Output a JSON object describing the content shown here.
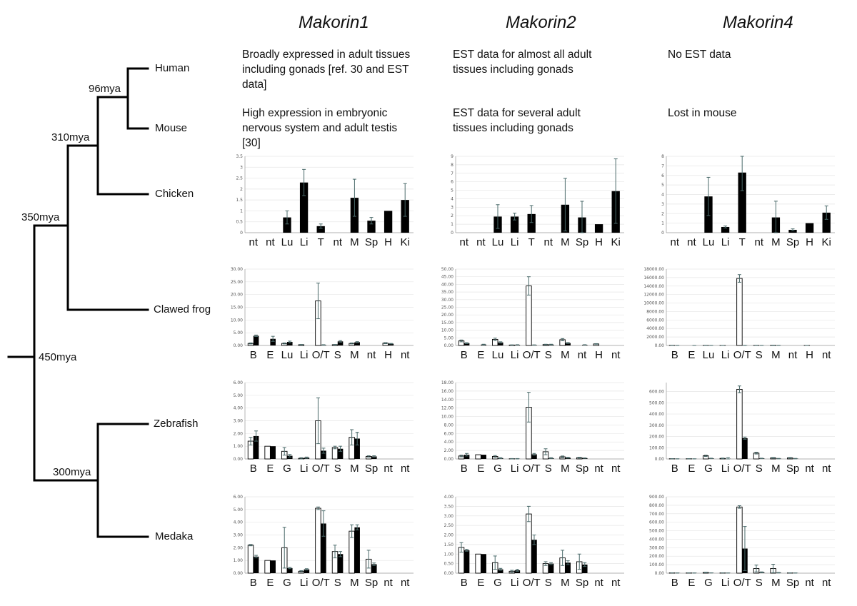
{
  "genes": [
    "Makorin1",
    "Makorin2",
    "Makorin4"
  ],
  "species": {
    "human": "Human",
    "mouse": "Mouse",
    "chicken": "Chicken",
    "frog": "Clawed frog",
    "zebrafish": "Zebrafish",
    "medaka": "Medaka"
  },
  "divergence_times": {
    "t96": "96mya",
    "t310": "310mya",
    "t350": "350mya",
    "t450": "450mya",
    "t300": "300mya"
  },
  "notes": {
    "human": [
      "Broadly expressed in adult tissues including gonads [ref. 30 and EST data]",
      "EST data for almost all adult tissues including gonads",
      "No EST data"
    ],
    "mouse": [
      "High expression in embryonic nervous system and adult testis [30]",
      "EST data for several adult tissues including gonads",
      "Lost in mouse"
    ]
  },
  "colors": {
    "bar_filled": "#000000",
    "bar_open": "#ffffff",
    "error_bar": "#4a6a6a",
    "axis": "#999999",
    "grid": "#e6e6e6"
  },
  "chart_data": [
    {
      "type": "bar",
      "gene": "Makorin1",
      "species": "Chicken",
      "categories": [
        "nt",
        "nt",
        "Lu",
        "Li",
        "T",
        "nt",
        "M",
        "Sp",
        "H",
        "Ki"
      ],
      "yticks": [
        "0",
        "0.5",
        "1",
        "1.5",
        "2",
        "2.5",
        "3",
        "3.5"
      ],
      "ylim": [
        0,
        3.5
      ],
      "series": [
        {
          "style": "filled",
          "values": [
            0,
            0,
            0.7,
            2.3,
            0.3,
            0,
            1.6,
            0.55,
            1.0,
            1.5
          ],
          "errors": [
            0,
            0,
            0.3,
            0.6,
            0.1,
            0,
            0.85,
            0.15,
            0,
            0.75
          ]
        }
      ]
    },
    {
      "type": "bar",
      "gene": "Makorin2",
      "species": "Chicken",
      "categories": [
        "nt",
        "nt",
        "Lu",
        "Li",
        "T",
        "nt",
        "M",
        "Sp",
        "H",
        "Ki"
      ],
      "yticks": [
        "0",
        "1",
        "2",
        "3",
        "4",
        "5",
        "6",
        "7",
        "8",
        "9"
      ],
      "ylim": [
        0,
        9
      ],
      "series": [
        {
          "style": "filled",
          "values": [
            0,
            0,
            1.9,
            1.9,
            2.2,
            0,
            3.3,
            1.8,
            1.0,
            4.9
          ],
          "errors": [
            0,
            0,
            1.4,
            0.4,
            1.0,
            0,
            3.1,
            1.9,
            0,
            3.8
          ]
        }
      ]
    },
    {
      "type": "bar",
      "gene": "Makorin4",
      "species": "Chicken",
      "categories": [
        "nt",
        "nt",
        "Lu",
        "Li",
        "T",
        "nt",
        "M",
        "Sp",
        "H",
        "Ki"
      ],
      "yticks": [
        "0",
        "1",
        "2",
        "3",
        "4",
        "5",
        "6",
        "7",
        "8"
      ],
      "ylim": [
        0,
        8
      ],
      "series": [
        {
          "style": "filled",
          "values": [
            0,
            0,
            3.8,
            0.6,
            6.3,
            0,
            1.6,
            0.3,
            1.0,
            2.1
          ],
          "errors": [
            0,
            0,
            2.0,
            0.1,
            1.9,
            0,
            1.7,
            0.1,
            0,
            0.7
          ]
        }
      ]
    },
    {
      "type": "bar",
      "gene": "Makorin1",
      "species": "Clawed frog",
      "categories": [
        "B",
        "E",
        "Lu",
        "Li",
        "O/T",
        "S",
        "M",
        "nt",
        "H",
        "nt"
      ],
      "yticks": [
        "0.00",
        "5.00",
        "10.00",
        "15.00",
        "20.00",
        "25.00",
        "30.00"
      ],
      "ylim": [
        0,
        30
      ],
      "series": [
        {
          "style": "open",
          "values": [
            0.8,
            0,
            0.8,
            0.3,
            17.5,
            0.3,
            0.8,
            0,
            0.9,
            0
          ],
          "errors": [
            0.2,
            0,
            0.2,
            0.1,
            7,
            0.1,
            0.2,
            0,
            0.2,
            0
          ]
        },
        {
          "style": "filled",
          "values": [
            3.8,
            2.6,
            1.4,
            0,
            0.2,
            1.6,
            1.3,
            0,
            0.7,
            0
          ],
          "errors": [
            0.3,
            1.0,
            0.3,
            0,
            0.1,
            0.3,
            0.2,
            0,
            0.1,
            0
          ]
        }
      ]
    },
    {
      "type": "bar",
      "gene": "Makorin2",
      "species": "Clawed frog",
      "categories": [
        "B",
        "E",
        "Lu",
        "Li",
        "O/T",
        "S",
        "M",
        "nt",
        "H",
        "nt"
      ],
      "yticks": [
        "0.00",
        "5.00",
        "10.00",
        "15.00",
        "20.00",
        "25.00",
        "30.00",
        "35.00",
        "40.00",
        "45.00",
        "50.00"
      ],
      "ylim": [
        0,
        50
      ],
      "series": [
        {
          "style": "open",
          "values": [
            3.0,
            0,
            4.0,
            0.3,
            39,
            0.6,
            3.8,
            0,
            1.0,
            0
          ],
          "errors": [
            0.6,
            0,
            0.8,
            0.1,
            6,
            0.2,
            0.7,
            0,
            0.2,
            0
          ]
        },
        {
          "style": "filled",
          "values": [
            1.5,
            0.6,
            2.0,
            0.4,
            0.3,
            0.6,
            1.6,
            0.4,
            0,
            0
          ],
          "errors": [
            0.3,
            0.2,
            0.4,
            0.1,
            0.1,
            0.2,
            0.3,
            0.1,
            0,
            0
          ]
        }
      ]
    },
    {
      "type": "bar",
      "gene": "Makorin4",
      "species": "Clawed frog",
      "categories": [
        "B",
        "E",
        "Lu",
        "Li",
        "O/T",
        "S",
        "M",
        "nt",
        "H",
        "nt"
      ],
      "yticks": [
        "0.00",
        "2000.00",
        "4000.00",
        "6000.00",
        "8000.00",
        "10000.00",
        "12000.00",
        "14000.00",
        "16000.00",
        "18000.00"
      ],
      "ylim": [
        0,
        18000
      ],
      "series": [
        {
          "style": "open",
          "values": [
            20,
            0,
            20,
            10,
            15800,
            20,
            40,
            0,
            10,
            0
          ],
          "errors": [
            5,
            0,
            5,
            5,
            900,
            5,
            10,
            0,
            5,
            0
          ]
        },
        {
          "style": "filled",
          "values": [
            10,
            5,
            10,
            0,
            20,
            10,
            20,
            0,
            0,
            0
          ],
          "errors": [
            3,
            2,
            3,
            0,
            5,
            3,
            5,
            0,
            0,
            0
          ]
        }
      ]
    },
    {
      "type": "bar",
      "gene": "Makorin1",
      "species": "Zebrafish",
      "categories": [
        "B",
        "E",
        "G",
        "Li",
        "O/T",
        "S",
        "M",
        "Sp",
        "nt",
        "nt"
      ],
      "yticks": [
        "0.00",
        "1.00",
        "2.00",
        "3.00",
        "4.00",
        "5.00",
        "6.00"
      ],
      "ylim": [
        0,
        6
      ],
      "series": [
        {
          "style": "open",
          "values": [
            1.4,
            1.0,
            0.6,
            0.05,
            3.0,
            0.9,
            1.7,
            0.2,
            0,
            0
          ],
          "errors": [
            0.3,
            0,
            0.3,
            0.05,
            1.8,
            0.1,
            0.6,
            0.05,
            0,
            0
          ]
        },
        {
          "style": "filled",
          "values": [
            1.8,
            1.0,
            0.25,
            0.1,
            0.65,
            0.8,
            1.6,
            0.2,
            0,
            0
          ],
          "errors": [
            0.4,
            0,
            0.1,
            0.05,
            0.2,
            0.2,
            0.5,
            0.05,
            0,
            0
          ]
        }
      ]
    },
    {
      "type": "bar",
      "gene": "Makorin2",
      "species": "Zebrafish",
      "categories": [
        "B",
        "E",
        "G",
        "Li",
        "O/T",
        "S",
        "M",
        "Sp",
        "nt",
        "nt"
      ],
      "yticks": [
        "0.00",
        "2.00",
        "4.00",
        "6.00",
        "8.00",
        "10.00",
        "12.00",
        "14.00",
        "16.00",
        "18.00"
      ],
      "ylim": [
        0,
        18
      ],
      "series": [
        {
          "style": "open",
          "values": [
            0.7,
            1.0,
            0.6,
            0.05,
            12.2,
            1.7,
            0.5,
            0.3,
            0,
            0
          ],
          "errors": [
            0.2,
            0,
            0.2,
            0.05,
            3.5,
            0.7,
            0.2,
            0.1,
            0,
            0
          ]
        },
        {
          "style": "filled",
          "values": [
            1.0,
            1.0,
            0.2,
            0.05,
            1.1,
            0.2,
            0.3,
            0.2,
            0,
            0
          ],
          "errors": [
            0.3,
            0,
            0.1,
            0.05,
            0.2,
            0.1,
            0.1,
            0.05,
            0,
            0
          ]
        }
      ]
    },
    {
      "type": "bar",
      "gene": "Makorin4",
      "species": "Zebrafish",
      "categories": [
        "B",
        "E",
        "G",
        "Li",
        "O/T",
        "S",
        "M",
        "Sp",
        "nt",
        "nt"
      ],
      "yticks": [
        "0.00",
        "100.00",
        "200.00",
        "300.00",
        "400.00",
        "500.00",
        "600.00"
      ],
      "ylim": [
        0,
        680
      ],
      "series": [
        {
          "style": "open",
          "values": [
            2,
            2,
            28,
            5,
            620,
            52,
            10,
            10,
            0,
            0
          ],
          "errors": [
            1,
            1,
            6,
            3,
            30,
            8,
            3,
            3,
            0,
            0
          ]
        },
        {
          "style": "filled",
          "values": [
            1,
            1,
            5,
            2,
            185,
            5,
            3,
            3,
            0,
            0
          ],
          "errors": [
            1,
            1,
            2,
            10,
            10,
            2,
            2,
            2,
            0,
            0
          ]
        }
      ]
    },
    {
      "type": "bar",
      "gene": "Makorin1",
      "species": "Medaka",
      "categories": [
        "B",
        "E",
        "G",
        "Li",
        "O/T",
        "S",
        "M",
        "Sp",
        "nt",
        "nt"
      ],
      "yticks": [
        "0.00",
        "1.00",
        "2.00",
        "3.00",
        "4.00",
        "5.00",
        "6.00"
      ],
      "ylim": [
        0,
        6
      ],
      "series": [
        {
          "style": "open",
          "values": [
            2.2,
            1.0,
            2.0,
            0.15,
            5.1,
            1.7,
            3.3,
            1.1,
            0,
            0
          ],
          "errors": [
            0.05,
            0,
            1.6,
            0.05,
            0.1,
            0.5,
            0.5,
            0.7,
            0,
            0
          ]
        },
        {
          "style": "filled",
          "values": [
            1.3,
            1.0,
            0.4,
            0.3,
            3.9,
            1.5,
            3.6,
            0.7,
            0,
            0
          ],
          "errors": [
            0.1,
            0,
            0.05,
            0.05,
            1.0,
            0.2,
            0.2,
            0.1,
            0,
            0
          ]
        }
      ]
    },
    {
      "type": "bar",
      "gene": "Makorin2",
      "species": "Medaka",
      "categories": [
        "B",
        "E",
        "G",
        "Li",
        "O/T",
        "S",
        "M",
        "Sp",
        "nt",
        "nt"
      ],
      "yticks": [
        "0.00",
        "0.50",
        "1.00",
        "1.50",
        "2.00",
        "2.50",
        "3.00",
        "3.50",
        "4.00"
      ],
      "ylim": [
        0,
        4
      ],
      "series": [
        {
          "style": "open",
          "values": [
            1.35,
            1.0,
            0.55,
            0.1,
            3.1,
            0.5,
            0.8,
            0.6,
            0,
            0
          ],
          "errors": [
            0.25,
            0,
            0.35,
            0.05,
            0.4,
            0.1,
            0.4,
            0.4,
            0,
            0
          ]
        },
        {
          "style": "filled",
          "values": [
            1.2,
            1.0,
            0.2,
            0.15,
            1.75,
            0.5,
            0.55,
            0.45,
            0,
            0
          ],
          "errors": [
            0.05,
            0,
            0.05,
            0.05,
            0.25,
            0.05,
            0.1,
            0.1,
            0,
            0
          ]
        }
      ]
    },
    {
      "type": "bar",
      "gene": "Makorin4",
      "species": "Medaka",
      "categories": [
        "B",
        "E",
        "G",
        "Li",
        "O/T",
        "S",
        "M",
        "Sp",
        "nt",
        "nt"
      ],
      "yticks": [
        "0.00",
        "100.00",
        "200.00",
        "300.00",
        "400.00",
        "500.00",
        "600.00",
        "700.00",
        "800.00",
        "900.00"
      ],
      "ylim": [
        0,
        900
      ],
      "series": [
        {
          "style": "open",
          "values": [
            3,
            3,
            8,
            3,
            780,
            55,
            55,
            3,
            0,
            0
          ],
          "errors": [
            1,
            1,
            3,
            1,
            15,
            40,
            50,
            1,
            0,
            0
          ]
        },
        {
          "style": "filled",
          "values": [
            2,
            2,
            3,
            2,
            290,
            10,
            5,
            2,
            0,
            0
          ],
          "errors": [
            1,
            1,
            1,
            1,
            260,
            5,
            3,
            1,
            0,
            0
          ]
        }
      ]
    }
  ]
}
